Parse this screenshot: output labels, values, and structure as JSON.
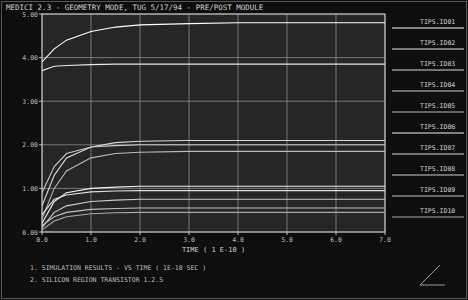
{
  "chart_data": {
    "type": "line",
    "title": "MEDICI 2.3 - GEOMETRY MODE, TUG 5/17/94 - PRE/POST MODULE",
    "x_label": "TIME ( 1 E-10 )",
    "annotations": [
      "1. SIMULATION RESULTS - VS TIME ( 1E-10 SEC )",
      "2. SILICON REGION TRANSISTOR 1.2.5"
    ],
    "x": [
      0,
      0.25,
      0.5,
      1,
      1.5,
      2,
      3,
      4,
      5,
      6,
      7
    ],
    "xlim": [
      0,
      7
    ],
    "xticks": [
      {
        "value": 0,
        "label": "0.0"
      },
      {
        "value": 1,
        "label": "1.0"
      },
      {
        "value": 2,
        "label": "2.0"
      },
      {
        "value": 3,
        "label": "3.0"
      },
      {
        "value": 4,
        "label": "4.0"
      },
      {
        "value": 5,
        "label": "5.0"
      },
      {
        "value": 6,
        "label": "6.0"
      },
      {
        "value": 7,
        "label": "7.0"
      }
    ],
    "ylim": [
      0,
      5
    ],
    "yticks": [
      {
        "value": 0,
        "label": "0.00"
      },
      {
        "value": 1,
        "label": "1.00"
      },
      {
        "value": 2,
        "label": "2.00"
      },
      {
        "value": 3,
        "label": "3.00"
      },
      {
        "value": 4,
        "label": "4.00"
      },
      {
        "value": 5,
        "label": "5.00"
      }
    ],
    "grid": true,
    "legend": "right",
    "series": [
      {
        "name": "TIPS.ID01",
        "color": "#ffffff",
        "values": [
          3.9,
          4.2,
          4.4,
          4.6,
          4.7,
          4.75,
          4.78,
          4.8,
          4.8,
          4.8,
          4.8
        ]
      },
      {
        "name": "TIPS.ID02",
        "color": "#e8e8e8",
        "values": [
          3.7,
          3.8,
          3.82,
          3.84,
          3.85,
          3.85,
          3.85,
          3.85,
          3.85,
          3.85,
          3.85
        ]
      },
      {
        "name": "TIPS.ID03",
        "color": "#d8d8d8",
        "values": [
          0.6,
          1.3,
          1.7,
          1.95,
          2.05,
          2.08,
          2.1,
          2.1,
          2.1,
          2.1,
          2.1
        ]
      },
      {
        "name": "TIPS.ID04",
        "color": "#c8c8c8",
        "values": [
          0.9,
          1.5,
          1.8,
          1.95,
          1.98,
          2.0,
          2.0,
          2.0,
          2.0,
          2.0,
          2.0
        ]
      },
      {
        "name": "TIPS.ID05",
        "color": "#bbbbbb",
        "values": [
          0.3,
          1.0,
          1.4,
          1.7,
          1.8,
          1.83,
          1.85,
          1.85,
          1.85,
          1.85,
          1.85
        ]
      },
      {
        "name": "TIPS.ID06",
        "color": "#f0f0f0",
        "values": [
          0.2,
          0.7,
          0.9,
          1.0,
          1.03,
          1.05,
          1.05,
          1.05,
          1.05,
          1.05,
          1.05
        ]
      },
      {
        "name": "TIPS.ID07",
        "color": "#dddddd",
        "values": [
          0.4,
          0.75,
          0.85,
          0.92,
          0.94,
          0.95,
          0.95,
          0.95,
          0.95,
          0.95,
          0.95
        ]
      },
      {
        "name": "TIPS.ID08",
        "color": "#cccccc",
        "values": [
          0.1,
          0.45,
          0.6,
          0.7,
          0.73,
          0.75,
          0.75,
          0.75,
          0.75,
          0.75,
          0.75
        ]
      },
      {
        "name": "TIPS.ID09",
        "color": "#bdbdbd",
        "values": [
          0.15,
          0.35,
          0.45,
          0.52,
          0.54,
          0.55,
          0.55,
          0.55,
          0.55,
          0.55,
          0.55
        ]
      },
      {
        "name": "TIPS.ID10",
        "color": "#aaaaaa",
        "values": [
          0.05,
          0.25,
          0.35,
          0.42,
          0.44,
          0.45,
          0.45,
          0.45,
          0.45,
          0.45,
          0.45
        ]
      }
    ]
  }
}
